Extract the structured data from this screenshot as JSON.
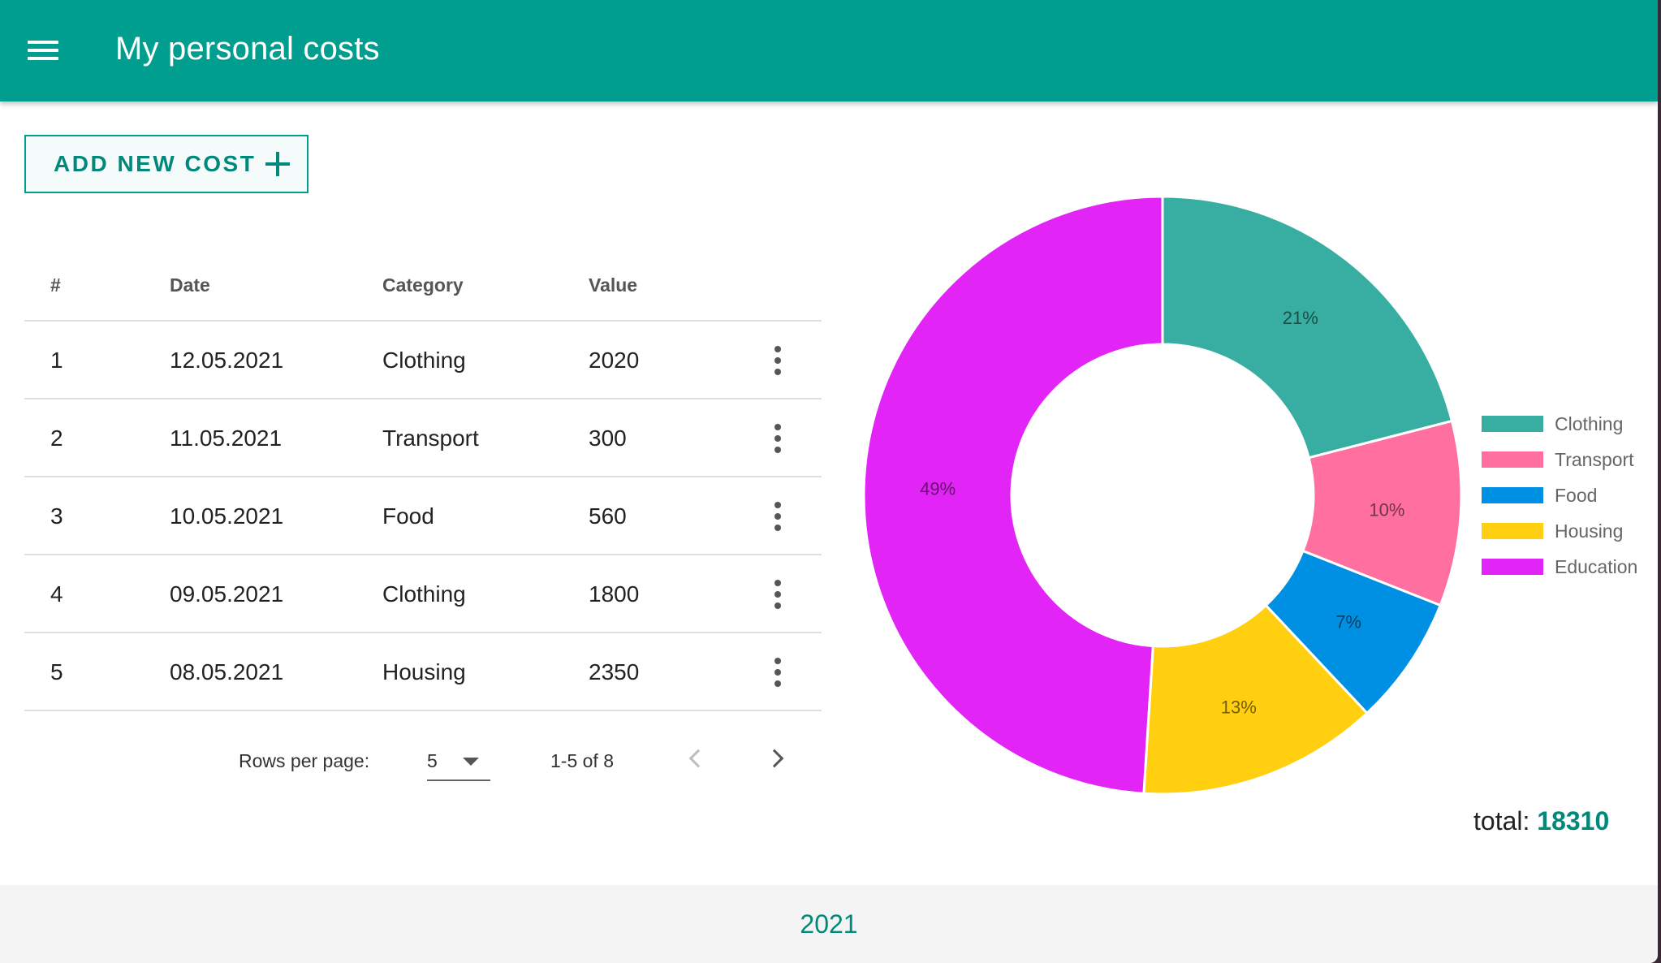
{
  "header": {
    "title": "My personal costs"
  },
  "add_button": {
    "label": "ADD NEW COST"
  },
  "table": {
    "columns": [
      "#",
      "Date",
      "Category",
      "Value"
    ],
    "rows": [
      {
        "num": "1",
        "date": "12.05.2021",
        "category": "Clothing",
        "value": "2020"
      },
      {
        "num": "2",
        "date": "11.05.2021",
        "category": "Transport",
        "value": "300"
      },
      {
        "num": "3",
        "date": "10.05.2021",
        "category": "Food",
        "value": "560"
      },
      {
        "num": "4",
        "date": "09.05.2021",
        "category": "Clothing",
        "value": "1800"
      },
      {
        "num": "5",
        "date": "08.05.2021",
        "category": "Housing",
        "value": "2350"
      }
    ]
  },
  "pagination": {
    "rows_per_page_label": "Rows per page:",
    "rows_per_page": "5",
    "range": "1-5 of 8"
  },
  "chart_data": {
    "type": "pie",
    "categories": [
      "Clothing",
      "Transport",
      "Food",
      "Housing",
      "Education"
    ],
    "values": [
      21,
      10,
      7,
      13,
      49
    ],
    "labels": [
      "21%",
      "10%",
      "7%",
      "13%",
      "49%"
    ],
    "colors": [
      "#38ada1",
      "#ff6f9f",
      "#0090e3",
      "#ffcf10",
      "#e224f6"
    ],
    "legend_position": "right"
  },
  "summary": {
    "total_label": "total:",
    "total_value": "18310"
  },
  "footer": {
    "year": "2021"
  }
}
